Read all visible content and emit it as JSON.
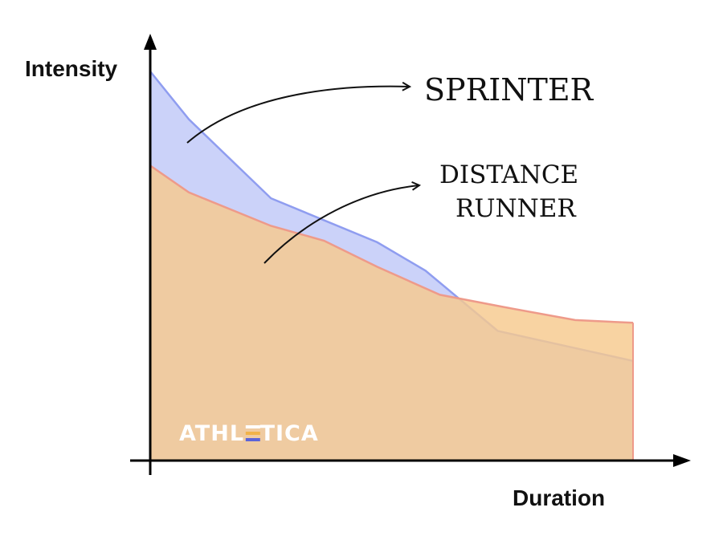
{
  "chart_data": {
    "type": "area",
    "title": "",
    "xlabel": "Duration",
    "ylabel": "Intensity",
    "xlim": [
      0,
      100
    ],
    "ylim": [
      0,
      100
    ],
    "grid": false,
    "legend": "none",
    "series": [
      {
        "name": "SPRINTER",
        "color": "#b9c3f7",
        "line_color": "#8f9df0",
        "points": [
          [
            0,
            100
          ],
          [
            8,
            87.7
          ],
          [
            25,
            67.4
          ],
          [
            47,
            56.1
          ],
          [
            57,
            48.8
          ],
          [
            72,
            33.3
          ],
          [
            100,
            25.6
          ]
        ]
      },
      {
        "name": "DISTANCE RUNNER",
        "color": "#f7c98e",
        "line_color": "#ee9a8a",
        "points": [
          [
            0,
            75.8
          ],
          [
            8,
            68.9
          ],
          [
            25,
            60.3
          ],
          [
            36,
            56.5
          ],
          [
            47,
            49.8
          ],
          [
            60,
            42.6
          ],
          [
            73,
            39.5
          ],
          [
            88,
            36.1
          ],
          [
            100,
            35.4
          ]
        ]
      }
    ],
    "annotations": {
      "sprinter": "SPRINTER",
      "distance_line1": "DISTANCE",
      "distance_line2": "RUNNER"
    }
  },
  "logo": {
    "text": "ATHLETICA",
    "part1": "ATHL",
    "part2": "TICA",
    "bar_colors": [
      "#ffffff",
      "#f0b24a",
      "#5b63d8"
    ]
  }
}
